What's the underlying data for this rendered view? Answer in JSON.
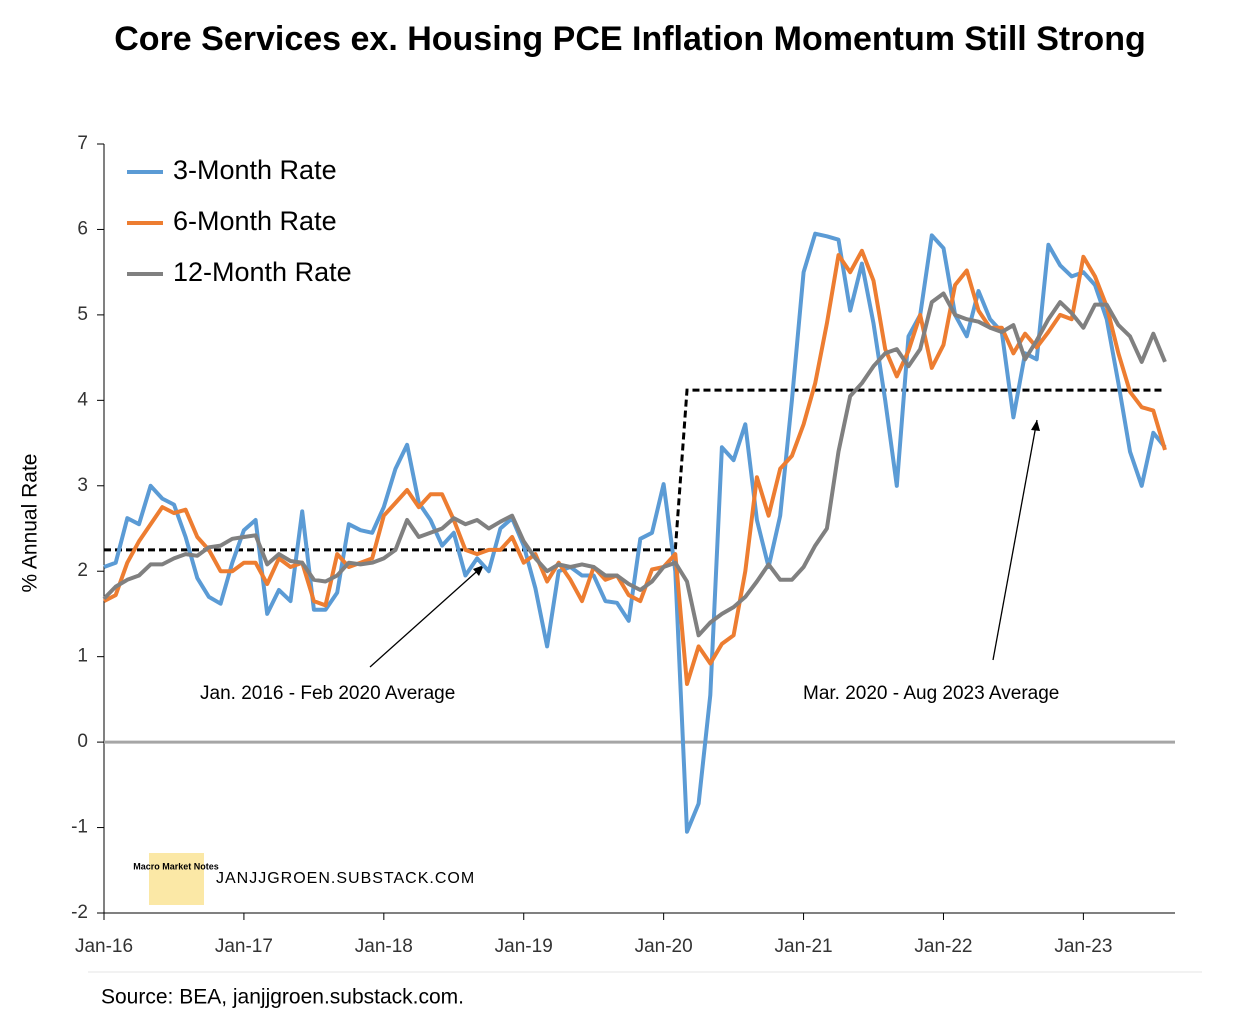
{
  "chart_data": {
    "type": "line",
    "title": "Core Services ex. Housing PCE Inflation Momentum Still Strong",
    "ylabel": "% Annual Rate",
    "source": "Source: BEA, janjjgroen.substack.com.",
    "watermark": "JANJJGROEN.SUBSTACK.COM",
    "logo_text": "Macro Market Notes",
    "legend": "upper left",
    "ylim": [
      -2,
      7
    ],
    "yticks": [
      -2,
      -1,
      0,
      1,
      2,
      3,
      4,
      5,
      6,
      7
    ],
    "categories": [
      "Jan-16",
      null,
      null,
      null,
      null,
      null,
      null,
      null,
      null,
      null,
      null,
      null,
      "Jan-17",
      null,
      null,
      null,
      null,
      null,
      null,
      null,
      null,
      null,
      null,
      null,
      "Jan-18",
      null,
      null,
      null,
      null,
      null,
      null,
      null,
      null,
      null,
      null,
      null,
      "Jan-19",
      null,
      null,
      null,
      null,
      null,
      null,
      null,
      null,
      null,
      null,
      null,
      "Jan-20",
      null,
      null,
      null,
      null,
      null,
      null,
      null,
      null,
      null,
      null,
      null,
      "Jan-21",
      null,
      null,
      null,
      null,
      null,
      null,
      null,
      null,
      null,
      null,
      null,
      "Jan-22",
      null,
      null,
      null,
      null,
      null,
      null,
      null,
      null,
      null,
      null,
      null,
      "Jan-23",
      null,
      null,
      null,
      null,
      null,
      null,
      null
    ],
    "series": [
      {
        "name": "3-Month Rate",
        "color": "#5b9bd5",
        "values": [
          2.05,
          2.1,
          2.62,
          2.55,
          3.0,
          2.85,
          2.78,
          2.4,
          1.92,
          1.7,
          1.62,
          2.1,
          2.48,
          2.6,
          1.5,
          1.78,
          1.65,
          2.7,
          1.55,
          1.55,
          1.75,
          2.55,
          2.48,
          2.45,
          2.75,
          3.2,
          3.48,
          2.8,
          2.6,
          2.3,
          2.45,
          1.95,
          2.15,
          2.0,
          2.5,
          2.62,
          2.3,
          1.8,
          1.12,
          2.0,
          2.05,
          1.95,
          1.95,
          1.65,
          1.63,
          1.42,
          2.38,
          2.45,
          3.02,
          2.0,
          -1.05,
          -0.72,
          0.55,
          3.45,
          3.3,
          3.72,
          2.6,
          2.05,
          2.65,
          4.0,
          5.5,
          5.95,
          5.92,
          5.88,
          5.05,
          5.6,
          4.9,
          4.0,
          3.0,
          4.75,
          5.0,
          5.93,
          5.78,
          5.0,
          4.75,
          5.28,
          4.95,
          4.8,
          3.8,
          4.55,
          4.48,
          5.82,
          5.58,
          5.45,
          5.5,
          5.35,
          4.95,
          4.2,
          3.4,
          3.0,
          3.62,
          3.45
        ]
      },
      {
        "name": "6-Month Rate",
        "color": "#ed7d31",
        "values": [
          1.65,
          1.72,
          2.1,
          2.35,
          2.55,
          2.75,
          2.68,
          2.72,
          2.4,
          2.25,
          2.0,
          2.0,
          2.1,
          2.1,
          1.85,
          2.15,
          2.05,
          2.1,
          1.65,
          1.6,
          2.2,
          2.05,
          2.1,
          2.15,
          2.65,
          2.8,
          2.95,
          2.75,
          2.9,
          2.9,
          2.6,
          2.25,
          2.2,
          2.25,
          2.25,
          2.4,
          2.1,
          2.2,
          1.88,
          2.1,
          1.9,
          1.65,
          2.05,
          1.9,
          1.95,
          1.72,
          1.65,
          2.02,
          2.05,
          2.2,
          0.68,
          1.12,
          0.92,
          1.15,
          1.25,
          2.0,
          3.1,
          2.65,
          3.2,
          3.35,
          3.72,
          4.2,
          4.9,
          5.7,
          5.5,
          5.75,
          5.4,
          4.6,
          4.28,
          4.58,
          5.0,
          4.38,
          4.65,
          5.35,
          5.52,
          5.05,
          4.85,
          4.85,
          4.55,
          4.78,
          4.62,
          4.8,
          5.0,
          4.95,
          5.68,
          5.45,
          5.1,
          4.55,
          4.1,
          3.92,
          3.88,
          3.42
        ]
      },
      {
        "name": "12-Month Rate",
        "color": "#808080",
        "values": [
          1.68,
          1.82,
          1.9,
          1.95,
          2.08,
          2.08,
          2.15,
          2.2,
          2.18,
          2.28,
          2.3,
          2.38,
          2.4,
          2.42,
          2.08,
          2.2,
          2.12,
          2.1,
          1.9,
          1.88,
          1.95,
          2.1,
          2.08,
          2.1,
          2.15,
          2.25,
          2.6,
          2.4,
          2.45,
          2.5,
          2.62,
          2.55,
          2.6,
          2.5,
          2.58,
          2.65,
          2.35,
          2.15,
          2.0,
          2.08,
          2.05,
          2.08,
          2.05,
          1.95,
          1.95,
          1.85,
          1.78,
          1.88,
          2.05,
          2.1,
          1.88,
          1.25,
          1.4,
          1.5,
          1.58,
          1.7,
          1.88,
          2.08,
          1.9,
          1.9,
          2.05,
          2.3,
          2.5,
          3.4,
          4.05,
          4.2,
          4.4,
          4.55,
          4.6,
          4.4,
          4.6,
          5.15,
          5.25,
          5.0,
          4.95,
          4.92,
          4.85,
          4.8,
          4.88,
          4.48,
          4.7,
          4.95,
          5.15,
          5.02,
          4.85,
          5.12,
          5.12,
          4.88,
          4.75,
          4.45,
          4.78,
          4.45
        ]
      }
    ],
    "average_line": {
      "color": "#000000",
      "values": [
        2.25,
        2.25,
        2.25,
        2.25,
        2.25,
        2.25,
        2.25,
        2.25,
        2.25,
        2.25,
        2.25,
        2.25,
        2.25,
        2.25,
        2.25,
        2.25,
        2.25,
        2.25,
        2.25,
        2.25,
        2.25,
        2.25,
        2.25,
        2.25,
        2.25,
        2.25,
        2.25,
        2.25,
        2.25,
        2.25,
        2.25,
        2.25,
        2.25,
        2.25,
        2.25,
        2.25,
        2.25,
        2.25,
        2.25,
        2.25,
        2.25,
        2.25,
        2.25,
        2.25,
        2.25,
        2.25,
        2.25,
        2.25,
        2.25,
        2.25,
        4.12,
        4.12,
        4.12,
        4.12,
        4.12,
        4.12,
        4.12,
        4.12,
        4.12,
        4.12,
        4.12,
        4.12,
        4.12,
        4.12,
        4.12,
        4.12,
        4.12,
        4.12,
        4.12,
        4.12,
        4.12,
        4.12,
        4.12,
        4.12,
        4.12,
        4.12,
        4.12,
        4.12,
        4.12,
        4.12,
        4.12,
        4.12,
        4.12,
        4.12,
        4.12,
        4.12,
        4.12,
        4.12,
        4.12,
        4.12,
        4.12,
        4.12
      ]
    },
    "annotations": [
      "Jan. 2016 - Feb 2020 Average",
      "Mar. 2020 - Aug 2023 Average"
    ]
  }
}
